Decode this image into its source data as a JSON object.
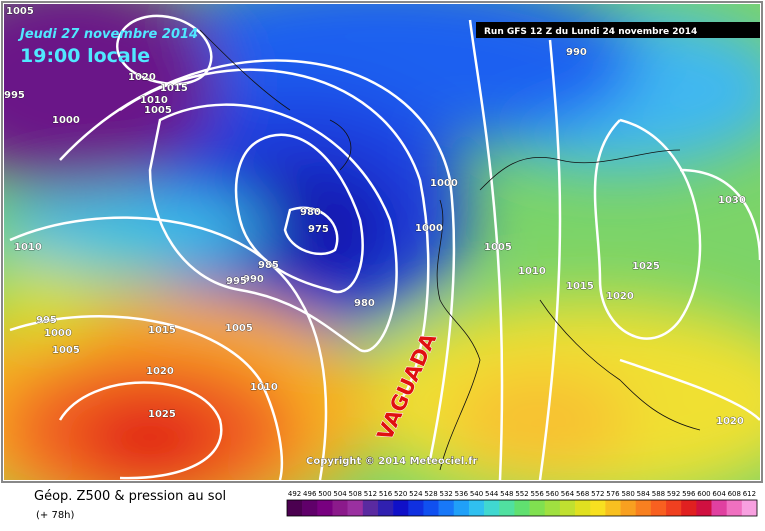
{
  "header": {
    "date": "Jeudi 27 novembre 2014",
    "time": "19:00 locale",
    "run": "Run GFS 12 Z du Lundi 24 novembre 2014"
  },
  "map": {
    "annotation": "VAGUADA",
    "copyright": "Copyright © 2014 Meteociel.fr",
    "isobars": [
      "1005",
      "995",
      "1000",
      "1020",
      "1015",
      "1010",
      "1005",
      "990",
      "1000",
      "1000",
      "980",
      "975",
      "1005",
      "1010",
      "985",
      "990",
      "995",
      "980",
      "1010",
      "995",
      "1000",
      "1005",
      "1015",
      "1005",
      "1020",
      "1010",
      "1025",
      "1015",
      "1020",
      "1025",
      "1030",
      "1020"
    ]
  },
  "footer": {
    "title": "Géop. Z500 & pression au sol",
    "lead": "(+ 78h)"
  },
  "legend": {
    "items": [
      {
        "label": "492",
        "color": "#4b0050"
      },
      {
        "label": "496",
        "color": "#60006a"
      },
      {
        "label": "500",
        "color": "#780080"
      },
      {
        "label": "504",
        "color": "#8b1a8b"
      },
      {
        "label": "508",
        "color": "#9a30a0"
      },
      {
        "label": "512",
        "color": "#5a2aa0"
      },
      {
        "label": "516",
        "color": "#3020b0"
      },
      {
        "label": "520",
        "color": "#1010c8"
      },
      {
        "label": "524",
        "color": "#1030e0"
      },
      {
        "label": "528",
        "color": "#1050f0"
      },
      {
        "label": "532",
        "color": "#1878f8"
      },
      {
        "label": "536",
        "color": "#20a0f8"
      },
      {
        "label": "540",
        "color": "#30c0f0"
      },
      {
        "label": "544",
        "color": "#40d8d0"
      },
      {
        "label": "548",
        "color": "#50e0a0"
      },
      {
        "label": "552",
        "color": "#60e070"
      },
      {
        "label": "556",
        "color": "#80e050"
      },
      {
        "label": "560",
        "color": "#a0e040"
      },
      {
        "label": "564",
        "color": "#c0e030"
      },
      {
        "label": "568",
        "color": "#e0e020"
      },
      {
        "label": "572",
        "color": "#f8e020"
      },
      {
        "label": "576",
        "color": "#f8c020"
      },
      {
        "label": "580",
        "color": "#f8a020"
      },
      {
        "label": "584",
        "color": "#f88020"
      },
      {
        "label": "588",
        "color": "#f86020"
      },
      {
        "label": "592",
        "color": "#f04020"
      },
      {
        "label": "596",
        "color": "#e02020"
      },
      {
        "label": "600",
        "color": "#d01040"
      },
      {
        "label": "604",
        "color": "#e040a0"
      },
      {
        "label": "608",
        "color": "#f070c0"
      },
      {
        "label": "612",
        "color": "#f8a0e0"
      }
    ]
  }
}
